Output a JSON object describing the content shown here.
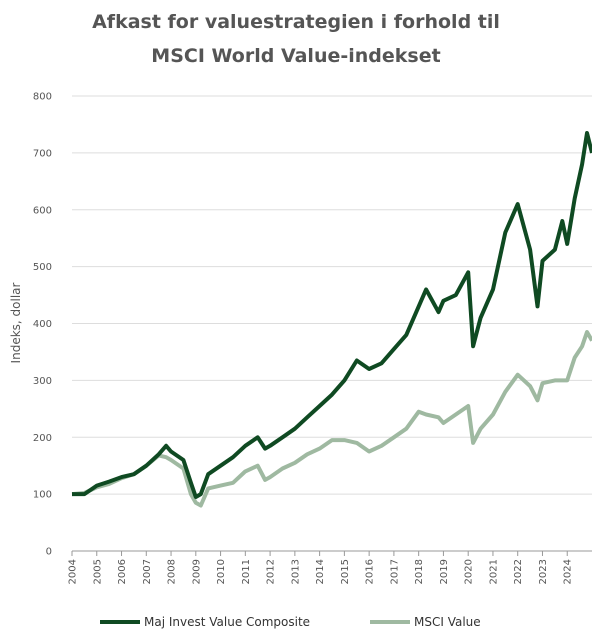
{
  "chart_data": {
    "type": "line",
    "title": [
      "Afkast for valuestrategien i forhold til",
      "MSCI World Value-indekset"
    ],
    "y_label": "Indeks, dollar",
    "x": [
      2004,
      2004.5,
      2005,
      2005.5,
      2006,
      2006.5,
      2007,
      2007.5,
      2007.8,
      2008,
      2008.5,
      2008.8,
      2009,
      2009.2,
      2009.5,
      2010,
      2010.5,
      2011,
      2011.5,
      2011.8,
      2012,
      2012.5,
      2013,
      2013.5,
      2014,
      2014.5,
      2015,
      2015.5,
      2016,
      2016.5,
      2017,
      2017.5,
      2018,
      2018.3,
      2018.8,
      2019,
      2019.5,
      2020,
      2020.2,
      2020.5,
      2021,
      2021.5,
      2022,
      2022.5,
      2022.8,
      2023,
      2023.5,
      2023.8,
      2024,
      2024.3,
      2024.6,
      2024.8,
      2025
    ],
    "series": [
      {
        "name": "Maj Invest Value Composite",
        "color": "#0f4a22",
        "values": [
          100,
          100,
          115,
          122,
          130,
          135,
          150,
          170,
          185,
          175,
          160,
          120,
          95,
          100,
          135,
          150,
          165,
          185,
          200,
          180,
          185,
          200,
          215,
          235,
          255,
          275,
          300,
          335,
          320,
          330,
          355,
          380,
          430,
          460,
          420,
          440,
          450,
          490,
          360,
          410,
          460,
          560,
          610,
          530,
          430,
          510,
          530,
          580,
          540,
          620,
          680,
          735,
          700
        ]
      },
      {
        "name": "MSCI Value",
        "color": "#9fb9a1",
        "values": [
          100,
          102,
          112,
          118,
          128,
          135,
          150,
          168,
          165,
          160,
          145,
          100,
          85,
          80,
          110,
          115,
          120,
          140,
          150,
          125,
          130,
          145,
          155,
          170,
          180,
          195,
          195,
          190,
          175,
          185,
          200,
          215,
          245,
          240,
          235,
          225,
          240,
          255,
          190,
          215,
          240,
          280,
          310,
          290,
          265,
          295,
          300,
          300,
          300,
          340,
          360,
          385,
          370
        ]
      }
    ],
    "xlim": [
      2004,
      2025
    ],
    "xticks": [
      2004,
      2005,
      2006,
      2007,
      2008,
      2009,
      2010,
      2011,
      2012,
      2013,
      2014,
      2015,
      2016,
      2017,
      2018,
      2019,
      2020,
      2021,
      2022,
      2023,
      2024
    ],
    "ylim": [
      0,
      800
    ],
    "yticks": [
      0,
      100,
      200,
      300,
      400,
      500,
      600,
      700,
      800
    ],
    "grid": true,
    "legend": "bottom"
  }
}
